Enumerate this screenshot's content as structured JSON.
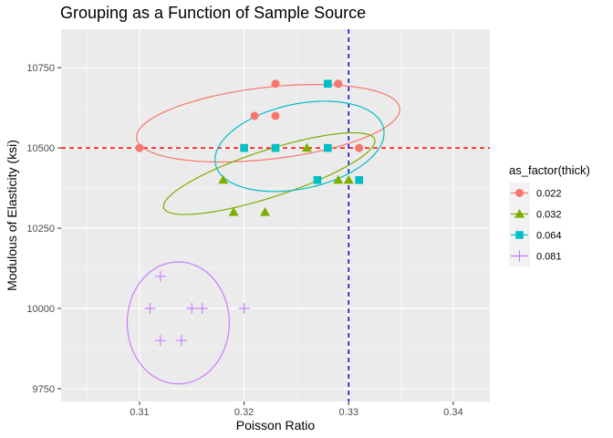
{
  "chart_data": {
    "type": "scatter",
    "title": "Grouping as a Function of Sample Source",
    "xlabel": "Poisson Ratio",
    "ylabel": "Modulous of Elasticity (ksi)",
    "xlim": [
      0.3025,
      0.3435
    ],
    "ylim": [
      9710,
      10870
    ],
    "x_ticks": [
      0.31,
      0.32,
      0.33,
      0.34
    ],
    "x_tick_labels": [
      "0.31",
      "0.32",
      "0.33",
      "0.34"
    ],
    "y_ticks": [
      9750,
      10000,
      10250,
      10500,
      10750
    ],
    "y_tick_labels": [
      "9750",
      "10000",
      "10250",
      "10500",
      "10750"
    ],
    "grid": true,
    "background": "#ebebeb",
    "legend": {
      "title": "as_factor(thick)",
      "position": "right"
    },
    "reference_lines": [
      {
        "orientation": "horizontal",
        "value": 10500,
        "color": "#ff0000",
        "style": "dashed"
      },
      {
        "orientation": "vertical",
        "value": 0.33,
        "color": "#0000ff",
        "style": "dashed"
      }
    ],
    "series": [
      {
        "name": "0.022",
        "color": "#F8766D",
        "shape": "circle",
        "points": [
          [
            0.31,
            10500
          ],
          [
            0.321,
            10600
          ],
          [
            0.323,
            10600
          ],
          [
            0.323,
            10700
          ],
          [
            0.329,
            10700
          ],
          [
            0.331,
            10500
          ]
        ],
        "ellipse": {
          "center": [
            0.3223,
            10577
          ],
          "rx": 0.01266,
          "ry": 112,
          "angle_deg": -6.5
        }
      },
      {
        "name": "0.032",
        "color": "#7CAE00",
        "shape": "triangle",
        "points": [
          [
            0.318,
            10400
          ],
          [
            0.319,
            10300
          ],
          [
            0.322,
            10300
          ],
          [
            0.326,
            10500
          ],
          [
            0.329,
            10400
          ],
          [
            0.33,
            10400
          ]
        ],
        "ellipse": {
          "center": [
            0.3224,
            10420
          ],
          "rx": 0.0106,
          "ry": 73,
          "angle_deg": -18
        }
      },
      {
        "name": "0.064",
        "color": "#00BFC4",
        "shape": "square",
        "points": [
          [
            0.32,
            10500
          ],
          [
            0.323,
            10500
          ],
          [
            0.327,
            10400
          ],
          [
            0.328,
            10500
          ],
          [
            0.328,
            10700
          ],
          [
            0.331,
            10400
          ]
        ],
        "ellipse": {
          "center": [
            0.3253,
            10505
          ],
          "rx": 0.00822,
          "ry": 132,
          "angle_deg": -12
        }
      },
      {
        "name": "0.081",
        "color": "#C77CFF",
        "shape": "cross",
        "points": [
          [
            0.311,
            10000
          ],
          [
            0.312,
            10100
          ],
          [
            0.312,
            9900
          ],
          [
            0.314,
            9900
          ],
          [
            0.315,
            10000
          ],
          [
            0.316,
            10000
          ],
          [
            0.32,
            10000
          ]
        ],
        "ellipse": {
          "center": [
            0.3137,
            9955
          ],
          "rx": 0.00488,
          "ry": 190,
          "angle_deg": 0
        }
      }
    ]
  }
}
